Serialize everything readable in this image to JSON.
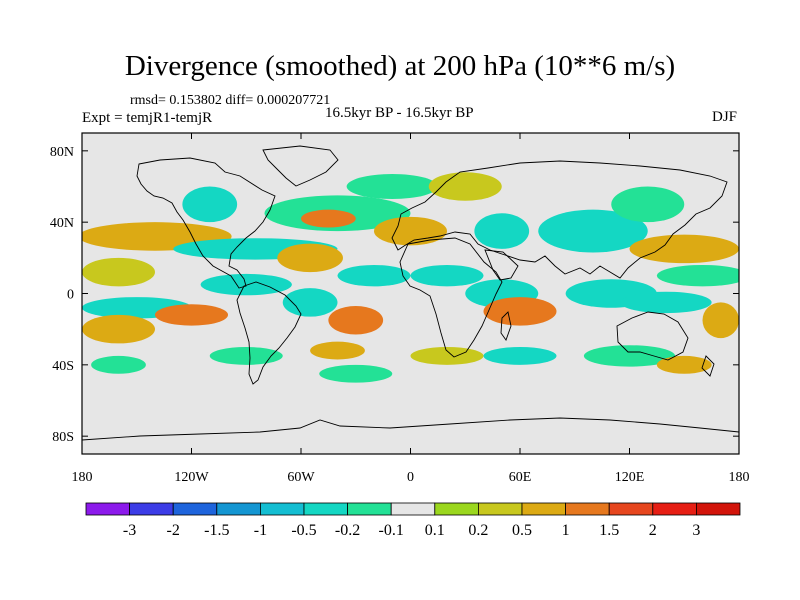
{
  "header": {
    "title": "Divergence (smoothed) at 200 hPa (10**6 m/s)",
    "stats": "rmsd= 0.153802 diff= 0.000207721",
    "experiment": "Expt = temjR1-temjR",
    "period": "16.5kyr BP - 16.5kyr BP",
    "season": "DJF"
  },
  "chart_data": {
    "type": "heatmap",
    "title": "Divergence (smoothed) at 200 hPa (10**6 m/s)",
    "projection": "cylindrical equidistant",
    "xlim": [
      -180,
      180
    ],
    "ylim": [
      -90,
      90
    ],
    "x_ticks": [
      {
        "value": -180,
        "label": "180"
      },
      {
        "value": -120,
        "label": "120W"
      },
      {
        "value": -60,
        "label": "60W"
      },
      {
        "value": 0,
        "label": "0"
      },
      {
        "value": 60,
        "label": "60E"
      },
      {
        "value": 120,
        "label": "120E"
      },
      {
        "value": 180,
        "label": "180"
      }
    ],
    "y_ticks": [
      {
        "value": 80,
        "label": "80N"
      },
      {
        "value": 40,
        "label": "40N"
      },
      {
        "value": 0,
        "label": "0"
      },
      {
        "value": -40,
        "label": "40S"
      },
      {
        "value": -80,
        "label": "80S"
      }
    ],
    "colorbar": {
      "labels": [
        "-3",
        "-2",
        "-1.5",
        "-1",
        "-0.5",
        "-0.2",
        "-0.1",
        "0.1",
        "0.2",
        "0.5",
        "1",
        "1.5",
        "2",
        "3"
      ],
      "colors": [
        "#8c1aeb",
        "#3c3ce6",
        "#1e64dc",
        "#1496d2",
        "#14bed2",
        "#14d7c3",
        "#23e196",
        "#e6e6e6",
        "#9bd71e",
        "#c8c81e",
        "#dcaa14",
        "#e6781e",
        "#e6461e",
        "#e61e14",
        "#d2140a"
      ]
    },
    "regions": [
      {
        "lon": -140,
        "lat": 32,
        "rx": 42,
        "ry": 8,
        "value": 0.5
      },
      {
        "lon": -160,
        "lat": 12,
        "rx": 20,
        "ry": 8,
        "value": 0.2
      },
      {
        "lon": -85,
        "lat": 25,
        "rx": 45,
        "ry": 6,
        "value": -0.5
      },
      {
        "lon": -40,
        "lat": 45,
        "rx": 40,
        "ry": 10,
        "value": -0.2
      },
      {
        "lon": -45,
        "lat": 42,
        "rx": 15,
        "ry": 5,
        "value": 1
      },
      {
        "lon": -55,
        "lat": 20,
        "rx": 18,
        "ry": 8,
        "value": 0.5
      },
      {
        "lon": -110,
        "lat": 50,
        "rx": 15,
        "ry": 10,
        "value": -0.5
      },
      {
        "lon": -10,
        "lat": 60,
        "rx": 25,
        "ry": 7,
        "value": -0.2
      },
      {
        "lon": 30,
        "lat": 60,
        "rx": 20,
        "ry": 8,
        "value": 0.2
      },
      {
        "lon": 0,
        "lat": 35,
        "rx": 20,
        "ry": 8,
        "value": 0.5
      },
      {
        "lon": 50,
        "lat": 35,
        "rx": 15,
        "ry": 10,
        "value": -0.5
      },
      {
        "lon": 100,
        "lat": 35,
        "rx": 30,
        "ry": 12,
        "value": -0.5
      },
      {
        "lon": 130,
        "lat": 50,
        "rx": 20,
        "ry": 10,
        "value": -0.2
      },
      {
        "lon": 150,
        "lat": 25,
        "rx": 30,
        "ry": 8,
        "value": 0.5
      },
      {
        "lon": 160,
        "lat": 10,
        "rx": 25,
        "ry": 6,
        "value": -0.2
      },
      {
        "lon": -150,
        "lat": -8,
        "rx": 30,
        "ry": 6,
        "value": -0.5
      },
      {
        "lon": -160,
        "lat": -20,
        "rx": 20,
        "ry": 8,
        "value": 0.5
      },
      {
        "lon": -120,
        "lat": -12,
        "rx": 20,
        "ry": 6,
        "value": 1
      },
      {
        "lon": -90,
        "lat": 5,
        "rx": 25,
        "ry": 6,
        "value": -0.5
      },
      {
        "lon": -55,
        "lat": -5,
        "rx": 15,
        "ry": 8,
        "value": -0.5
      },
      {
        "lon": -20,
        "lat": 10,
        "rx": 20,
        "ry": 6,
        "value": -0.5
      },
      {
        "lon": -30,
        "lat": -15,
        "rx": 15,
        "ry": 8,
        "value": 1
      },
      {
        "lon": 20,
        "lat": 10,
        "rx": 20,
        "ry": 6,
        "value": -0.5
      },
      {
        "lon": 50,
        "lat": 0,
        "rx": 20,
        "ry": 8,
        "value": -0.5
      },
      {
        "lon": 60,
        "lat": -10,
        "rx": 20,
        "ry": 8,
        "value": 1
      },
      {
        "lon": 110,
        "lat": 0,
        "rx": 25,
        "ry": 8,
        "value": -0.5
      },
      {
        "lon": 140,
        "lat": -5,
        "rx": 25,
        "ry": 6,
        "value": -0.5
      },
      {
        "lon": 170,
        "lat": -15,
        "rx": 10,
        "ry": 10,
        "value": 0.5
      },
      {
        "lon": -90,
        "lat": -35,
        "rx": 20,
        "ry": 5,
        "value": -0.2
      },
      {
        "lon": -40,
        "lat": -32,
        "rx": 15,
        "ry": 5,
        "value": 0.5
      },
      {
        "lon": 20,
        "lat": -35,
        "rx": 20,
        "ry": 5,
        "value": 0.2
      },
      {
        "lon": 60,
        "lat": -35,
        "rx": 20,
        "ry": 5,
        "value": -0.5
      },
      {
        "lon": 120,
        "lat": -35,
        "rx": 25,
        "ry": 6,
        "value": -0.2
      },
      {
        "lon": 150,
        "lat": -40,
        "rx": 15,
        "ry": 5,
        "value": 0.5
      },
      {
        "lon": -160,
        "lat": -40,
        "rx": 15,
        "ry": 5,
        "value": -0.2
      },
      {
        "lon": -30,
        "lat": -45,
        "rx": 20,
        "ry": 5,
        "value": -0.2
      }
    ]
  }
}
